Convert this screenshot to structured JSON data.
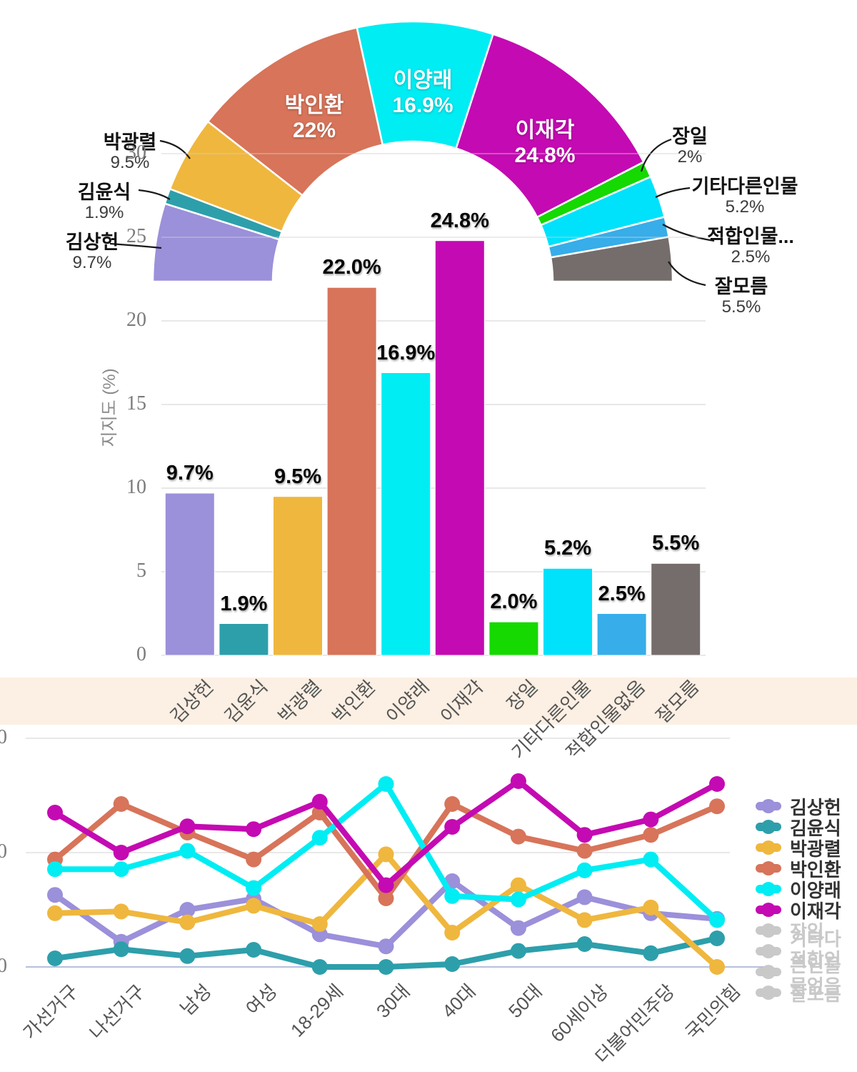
{
  "chart_data": [
    {
      "type": "pie",
      "subtype": "semi-donut",
      "categories": [
        "김상헌",
        "김윤식",
        "박광렬",
        "박인환",
        "이양래",
        "이재각",
        "장일",
        "기타다른인물",
        "적합인물없음",
        "잘모름"
      ],
      "display_names": [
        "김상헌",
        "김윤식",
        "박광렬",
        "박인환",
        "이양래",
        "이재각",
        "장일",
        "기타다른인물",
        "적합인물...",
        "잘모름"
      ],
      "values": [
        9.7,
        1.9,
        9.5,
        22,
        16.9,
        24.8,
        2,
        5.2,
        2.5,
        5.5
      ],
      "labels": [
        "9.7%",
        "1.9%",
        "9.5%",
        "22%",
        "16.9%",
        "24.8%",
        "2%",
        "5.2%",
        "2.5%",
        "5.5%"
      ],
      "label_placement": [
        "outside",
        "outside",
        "outside",
        "inside",
        "inside",
        "inside",
        "outside",
        "outside",
        "outside",
        "outside"
      ],
      "colors": [
        "#9b90da",
        "#2d9fab",
        "#efb73e",
        "#d7745a",
        "#00edf3",
        "#c40ab2",
        "#15d900",
        "#00e1fb",
        "#37ade9",
        "#756d6b"
      ]
    },
    {
      "type": "bar",
      "categories": [
        "김상헌",
        "김윤식",
        "박광렬",
        "박인환",
        "이양래",
        "이재각",
        "장일",
        "기타다른인물",
        "적합인물없음",
        "잘모름"
      ],
      "values": [
        9.7,
        1.9,
        9.5,
        22.0,
        16.9,
        24.8,
        2.0,
        5.2,
        2.5,
        5.5
      ],
      "value_labels": [
        "9.7%",
        "1.9%",
        "9.5%",
        "22.0%",
        "16.9%",
        "24.8%",
        "2.0%",
        "5.2%",
        "2.5%",
        "5.5%"
      ],
      "colors": [
        "#9b90da",
        "#2d9fab",
        "#efb73e",
        "#d7745a",
        "#00edf3",
        "#c40ab2",
        "#15d900",
        "#00e1fb",
        "#37ade9",
        "#756d6b"
      ],
      "xlabel": "",
      "ylabel": "지지도 (%)",
      "ylim": [
        0,
        30
      ],
      "yticks": [
        0,
        5,
        10,
        15,
        20,
        25,
        30
      ],
      "grid": true
    },
    {
      "type": "line",
      "categories": [
        "가선거구",
        "나선거구",
        "남성",
        "여성",
        "18-29세",
        "30대",
        "40대",
        "50대",
        "60세이상",
        "더불어민주당",
        "국민의힘"
      ],
      "series": [
        {
          "name": "김상헌",
          "color": "#9b90da",
          "values": [
            12.6,
            4.4,
            10.0,
            11.9,
            5.7,
            3.6,
            15.0,
            6.8,
            12.2,
            9.4,
            8.4
          ]
        },
        {
          "name": "김윤식",
          "color": "#2d9fab",
          "values": [
            1.5,
            3.1,
            1.9,
            3.0,
            0,
            0,
            0.5,
            2.8,
            4.0,
            2.4,
            5.0
          ]
        },
        {
          "name": "박광렬",
          "color": "#efb73e",
          "values": [
            9.4,
            9.7,
            7.8,
            10.7,
            7.5,
            19.7,
            6.0,
            14.3,
            8.2,
            10.4,
            0
          ]
        },
        {
          "name": "박인환",
          "color": "#d7745a",
          "values": [
            18.8,
            28.5,
            23.5,
            18.8,
            27.0,
            12.0,
            28.5,
            22.8,
            20.3,
            23.1,
            28.1
          ]
        },
        {
          "name": "이양래",
          "color": "#00edf3",
          "values": [
            17.1,
            17.1,
            20.3,
            13.8,
            22.6,
            32.0,
            12.4,
            11.8,
            16.9,
            18.8,
            8.2
          ]
        },
        {
          "name": "이재각",
          "color": "#c40ab2",
          "values": [
            27.0,
            20.0,
            24.6,
            24.1,
            28.9,
            14.3,
            24.5,
            32.5,
            23.1,
            25.8,
            32.0
          ]
        }
      ],
      "disabled_series": [
        "장일",
        "기타다른인물",
        "적합인물없음",
        "잘모름"
      ],
      "ylim": [
        0,
        40
      ],
      "yticks": [
        40,
        20,
        0
      ],
      "grid": true,
      "legend_position": "right"
    }
  ],
  "legend": {
    "items": [
      {
        "label": "김상헌",
        "color": "#9b90da",
        "active": true
      },
      {
        "label": "김윤식",
        "color": "#2d9fab",
        "active": true
      },
      {
        "label": "박광렬",
        "color": "#efb73e",
        "active": true
      },
      {
        "label": "박인환",
        "color": "#d7745a",
        "active": true
      },
      {
        "label": "이양래",
        "color": "#00edf3",
        "active": true
      },
      {
        "label": "이재각",
        "color": "#c40ab2",
        "active": true
      },
      {
        "label": "장일",
        "color": "#c9c9c9",
        "active": false
      },
      {
        "label": "기타다른인물",
        "color": "#c9c9c9",
        "active": false
      },
      {
        "label": "적합인물없음",
        "color": "#c9c9c9",
        "active": false
      },
      {
        "label": "잘모름",
        "color": "#c9c9c9",
        "active": false
      }
    ]
  },
  "styles": {
    "inactive_color": "#c9c9c9",
    "band_color": "#fcefe3",
    "grid_color": "#e0e0e0",
    "axis_text_color": "#7b7b7b",
    "category_text_color": "#555555",
    "bottom_axis_color": "#b7c0dd"
  }
}
